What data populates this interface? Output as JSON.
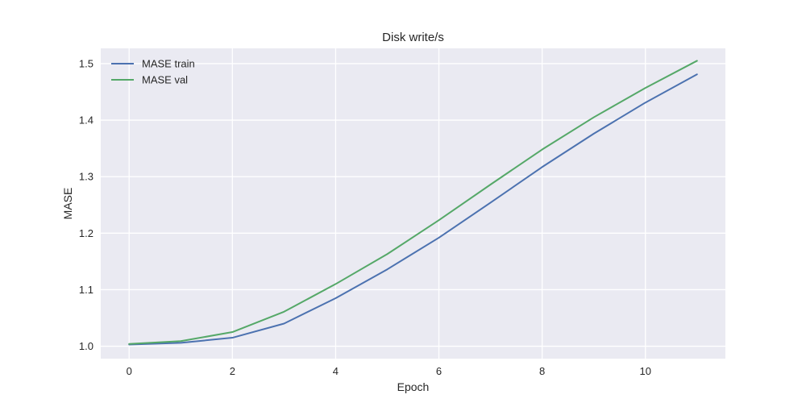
{
  "chart_data": {
    "type": "line",
    "title": "Disk write/s",
    "xlabel": "Epoch",
    "ylabel": "MASE",
    "x": [
      0,
      1,
      2,
      3,
      4,
      5,
      6,
      7,
      8,
      9,
      10,
      11
    ],
    "xlim": [
      -0.55,
      11.55
    ],
    "ylim": [
      0.978,
      1.527
    ],
    "xticks": [
      0,
      2,
      4,
      6,
      8,
      10
    ],
    "yticks": [
      1.0,
      1.1,
      1.2,
      1.3,
      1.4,
      1.5
    ],
    "grid": true,
    "legend_position": "top-left",
    "series": [
      {
        "name": "MASE train",
        "color": "#4c72b0",
        "values": [
          1.003,
          1.006,
          1.015,
          1.04,
          1.085,
          1.136,
          1.192,
          1.254,
          1.317,
          1.376,
          1.431,
          1.481
        ]
      },
      {
        "name": "MASE val",
        "color": "#55a868",
        "values": [
          1.004,
          1.009,
          1.025,
          1.061,
          1.11,
          1.163,
          1.223,
          1.286,
          1.348,
          1.405,
          1.457,
          1.505
        ]
      }
    ]
  }
}
